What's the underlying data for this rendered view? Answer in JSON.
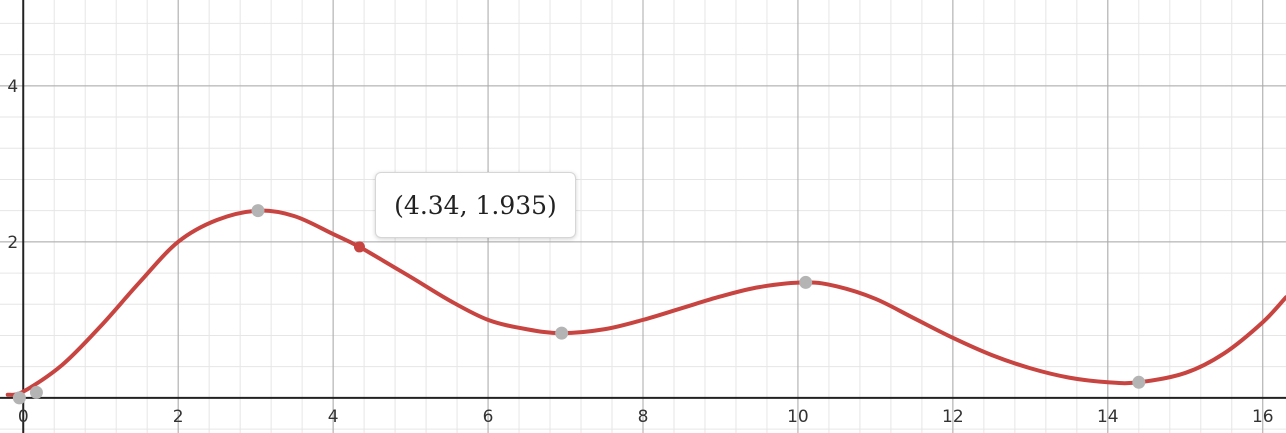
{
  "chart_data": {
    "type": "line",
    "title": "",
    "xlabel": "",
    "ylabel": "",
    "xlim": [
      -0.3,
      16.3
    ],
    "ylim": [
      -0.45,
      5.1
    ],
    "grid": true,
    "x_ticks": [
      0,
      2,
      4,
      6,
      8,
      10,
      12,
      14,
      16
    ],
    "x_tick_labels": [
      "0",
      "2",
      "4",
      "6",
      "8",
      "10",
      "12",
      "14",
      "16"
    ],
    "y_ticks": [
      2,
      4
    ],
    "y_tick_labels": [
      "2",
      "4"
    ],
    "series": [
      {
        "color": "#c74440",
        "x": [
          -0.2,
          0.0,
          0.5,
          1.0,
          1.5,
          2.0,
          2.5,
          3.03,
          3.5,
          4.0,
          4.34,
          5.0,
          5.5,
          6.0,
          6.5,
          6.95,
          7.5,
          8.0,
          8.5,
          9.0,
          9.5,
          10.1,
          10.5,
          11.0,
          11.5,
          12.0,
          12.5,
          13.0,
          13.5,
          14.0,
          14.4,
          15.0,
          15.5,
          16.0,
          16.3
        ],
        "y": [
          0.04,
          0.08,
          0.42,
          0.92,
          1.48,
          2.0,
          2.28,
          2.4,
          2.33,
          2.1,
          1.935,
          1.55,
          1.25,
          1.0,
          0.88,
          0.83,
          0.88,
          1.0,
          1.15,
          1.3,
          1.42,
          1.48,
          1.43,
          1.27,
          1.02,
          0.77,
          0.55,
          0.38,
          0.26,
          0.2,
          0.2,
          0.32,
          0.57,
          0.97,
          1.29
        ]
      }
    ],
    "points": [
      {
        "x": -0.05,
        "y": 0.0,
        "color": "#b4b4b4"
      },
      {
        "x": 0.17,
        "y": 0.07,
        "color": "#b4b4b4"
      },
      {
        "x": 3.03,
        "y": 2.4,
        "color": "#b4b4b4"
      },
      {
        "x": 6.95,
        "y": 0.83,
        "color": "#b4b4b4"
      },
      {
        "x": 10.1,
        "y": 1.48,
        "color": "#b4b4b4"
      },
      {
        "x": 14.4,
        "y": 0.2,
        "color": "#b4b4b4"
      },
      {
        "x": 4.34,
        "y": 1.935,
        "color": "#c74440"
      }
    ],
    "tooltip": {
      "label": "(4.34, 1.935)"
    }
  }
}
